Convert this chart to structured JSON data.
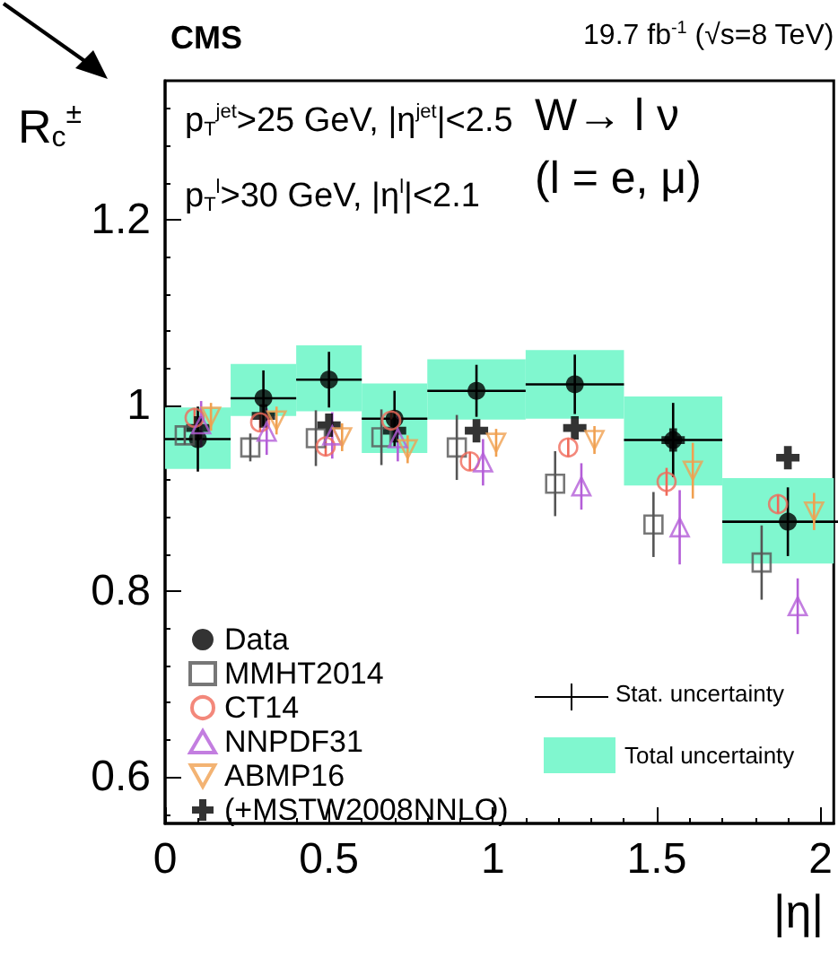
{
  "chart_data": {
    "type": "scatter",
    "title": "CMS",
    "subtitle": "19.7 fb$^{-1}$ (√s=8 TeV)",
    "xlabel": "|η|",
    "ylabel": "R$_{c}$$^{±}$",
    "annotations": [
      "p$_{T}$$^{jet}$>25 GeV, |η$^{jet}$|<2.5",
      "p$_{T}$$^{l}$>30 GeV, |η$^{l}$|<2.1",
      "W→ l ν",
      "(l = e, μ)",
      "Stat. uncertainty"
    ],
    "xlim": [
      0,
      2.04
    ],
    "ylim": [
      0.55,
      1.35
    ],
    "xticks": [
      0,
      0.5,
      1,
      1.5,
      2
    ],
    "yticks": [
      0.6,
      0.8,
      1,
      1.2
    ],
    "grid": false,
    "legend": "bottom left",
    "series": [
      {
        "name": "Total uncertainty",
        "type": "histogram",
        "color": "#80f7cf",
        "bins": [
          0,
          0.2,
          0.4,
          0.6,
          0.8,
          1.1,
          1.4,
          1.7,
          2.04
        ],
        "base": [
          0.932,
          0.989,
          0.994,
          0.949,
          0.985,
          0.986,
          0.914,
          0.83
        ],
        "values": [
          0.066,
          0.056,
          0.071,
          0.075,
          0.065,
          0.074,
          0.096,
          0.092
        ]
      },
      {
        "name": "Data",
        "marker": "circle",
        "color": "#000000",
        "x": [
          0.1,
          0.3,
          0.5,
          0.7,
          0.95,
          1.25,
          1.55,
          1.9
        ],
        "values": [
          0.964,
          1.008,
          1.028,
          0.986,
          1.016,
          1.023,
          0.963,
          0.875
        ],
        "errors": [
          0.035,
          0.03,
          0.03,
          0.03,
          0.028,
          0.032,
          0.04,
          0.037
        ],
        "xerrors": [
          0.1,
          0.1,
          0.1,
          0.1,
          0.15,
          0.15,
          0.15,
          0.2
        ]
      },
      {
        "name": "MMHT2014",
        "marker": "square",
        "color": "#555555",
        "x": [
          0.06,
          0.26,
          0.46,
          0.66,
          0.89,
          1.19,
          1.49,
          1.82
        ],
        "values": [
          0.968,
          0.955,
          0.965,
          0.966,
          0.955,
          0.916,
          0.872,
          0.831
        ],
        "errors": [
          0.01,
          0.015,
          0.03,
          0.03,
          0.035,
          0.035,
          0.035,
          0.04
        ]
      },
      {
        "name": "CT14",
        "marker": "circle",
        "color": "#f06a5a",
        "x": [
          0.09,
          0.29,
          0.49,
          0.69,
          0.93,
          1.23,
          1.53,
          1.87
        ],
        "values": [
          0.987,
          0.982,
          0.956,
          0.984,
          0.94,
          0.955,
          0.918,
          0.894
        ],
        "errors": [
          0.01,
          0.01,
          0.01,
          0.01,
          0.01,
          0.01,
          0.015,
          0.01
        ]
      },
      {
        "name": "NNPDF31",
        "marker": "triangle",
        "color": "#b45ed8",
        "x": [
          0.11,
          0.31,
          0.51,
          0.71,
          0.97,
          1.27,
          1.57,
          1.93
        ],
        "values": [
          0.98,
          0.972,
          0.968,
          0.965,
          0.939,
          0.913,
          0.869,
          0.784
        ],
        "errors": [
          0.025,
          0.025,
          0.025,
          0.025,
          0.025,
          0.025,
          0.04,
          0.03
        ]
      },
      {
        "name": "ABMP16",
        "marker": "triangle-down",
        "color": "#f0a050",
        "x": [
          0.14,
          0.34,
          0.54,
          0.74,
          1.01,
          1.31,
          1.61,
          1.98
        ],
        "values": [
          0.988,
          0.984,
          0.966,
          0.953,
          0.96,
          0.963,
          0.93,
          0.886
        ],
        "errors": [
          0.015,
          0.015,
          0.015,
          0.015,
          0.015,
          0.015,
          0.03,
          0.02
        ]
      },
      {
        "name": "(+MSTW2008NNLO)",
        "marker": "cross",
        "color": "#000000",
        "x": [
          0.1,
          0.3,
          0.5,
          0.7,
          0.95,
          1.25,
          1.55,
          1.9
        ],
        "values": [
          0.976,
          0.989,
          0.979,
          0.973,
          0.973,
          0.976,
          0.963,
          0.944
        ]
      }
    ]
  }
}
